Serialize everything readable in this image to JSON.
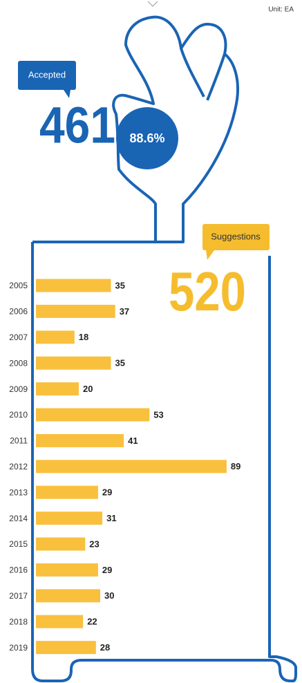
{
  "unit": "Unit: EA",
  "accepted": {
    "label": "Accepted",
    "value": "461",
    "rate": "88.6%"
  },
  "suggestions": {
    "label": "Suggestions",
    "value": "520"
  },
  "chart_data": {
    "type": "bar",
    "orientation": "horizontal",
    "categories": [
      "2005",
      "2006",
      "2007",
      "2008",
      "2009",
      "2010",
      "2011",
      "2012",
      "2013",
      "2014",
      "2015",
      "2016",
      "2017",
      "2018",
      "2019"
    ],
    "values": [
      35,
      37,
      18,
      35,
      20,
      53,
      41,
      89,
      29,
      31,
      23,
      29,
      30,
      22,
      28
    ],
    "color": "#f9c03e",
    "xlim": [
      0,
      100
    ]
  }
}
